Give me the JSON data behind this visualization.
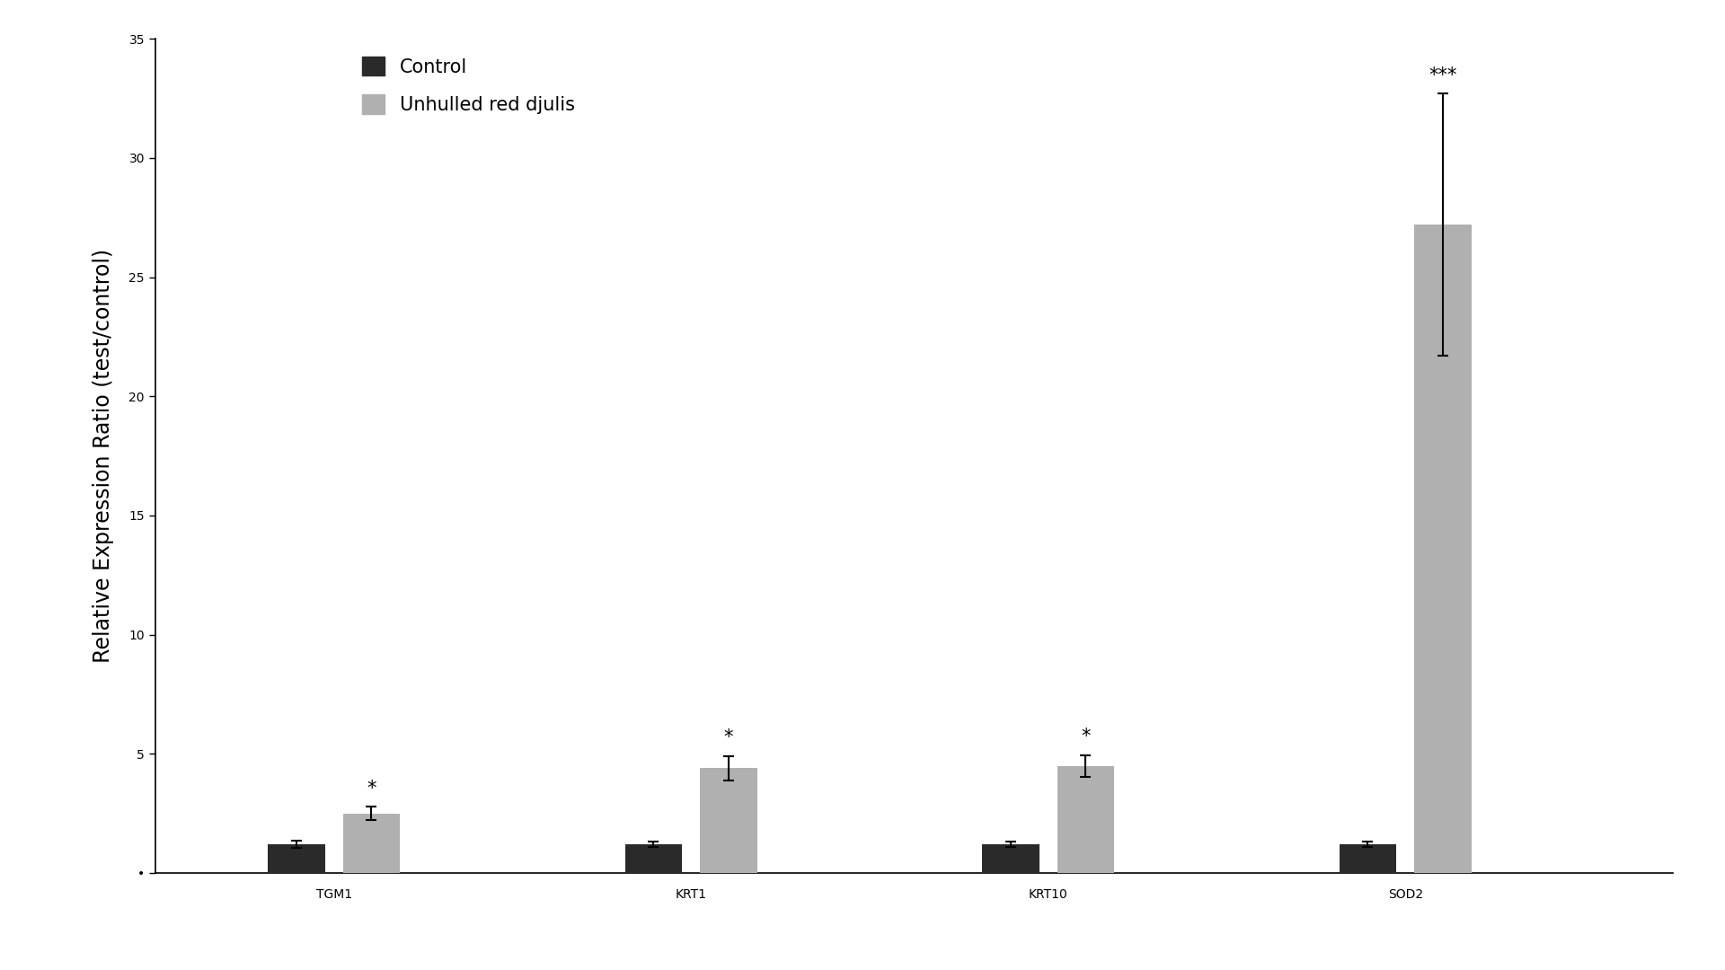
{
  "categories": [
    "TGM1",
    "KRT1",
    "KRT10",
    "SOD2"
  ],
  "control_values": [
    1.2,
    1.2,
    1.2,
    1.2
  ],
  "control_errors": [
    0.15,
    0.12,
    0.12,
    0.12
  ],
  "treatment_values": [
    2.5,
    4.4,
    4.5,
    27.2
  ],
  "treatment_errors": [
    0.28,
    0.5,
    0.45,
    5.5
  ],
  "control_color": "#2a2a2a",
  "treatment_color": "#b0b0b0",
  "ylabel": "Relative Expression Ratio (test/control)",
  "ylim": [
    0,
    35
  ],
  "yticks": [
    0,
    5,
    10,
    15,
    20,
    25,
    30,
    35
  ],
  "ytick_labels": [
    "•",
    "5",
    "10",
    "15",
    "20",
    "25",
    "30",
    "35"
  ],
  "legend_labels": [
    "Control",
    "Unhulled red djulis"
  ],
  "significance_labels": [
    "*",
    "*",
    "*",
    "***"
  ],
  "bar_width": 0.32,
  "background_color": "#ffffff",
  "font_size": 17,
  "tick_font_size": 15,
  "legend_font_size": 15,
  "sig_font_size": 15,
  "group_positions": [
    1.0,
    3.0,
    5.0,
    7.0
  ]
}
